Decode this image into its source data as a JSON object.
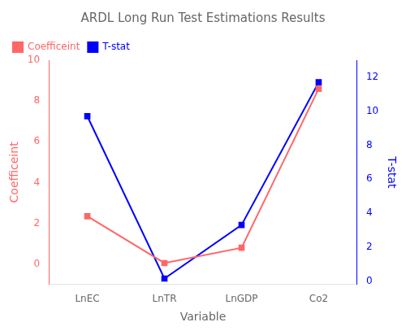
{
  "chart_data": {
    "type": "line",
    "title": "ARDL Long Run Test Estimations Results",
    "categories": [
      "LnEC",
      "LnTR",
      "LnGDP",
      "Co2"
    ],
    "xlabel": "Variable",
    "ylabel": "Coefficeint",
    "y2label": "T-stat",
    "series": [
      {
        "name": "Coefficeint",
        "color": "#FF6666",
        "marker": "square",
        "values": [
          2.35,
          0.05,
          0.8,
          8.6
        ]
      },
      {
        "name": "T-stat",
        "color": "#0000FF",
        "marker": "square",
        "axis": "y2",
        "values": [
          9.7,
          0.15,
          3.3,
          11.7
        ]
      }
    ],
    "ylim": [
      -1,
      10
    ],
    "yticks": [
      0,
      2,
      4,
      6,
      8,
      10
    ],
    "y2lim": [
      -0.2,
      13
    ],
    "y2ticks": [
      0,
      2,
      4,
      6,
      8,
      10,
      12
    ],
    "legend": "upper left",
    "grid": false
  }
}
